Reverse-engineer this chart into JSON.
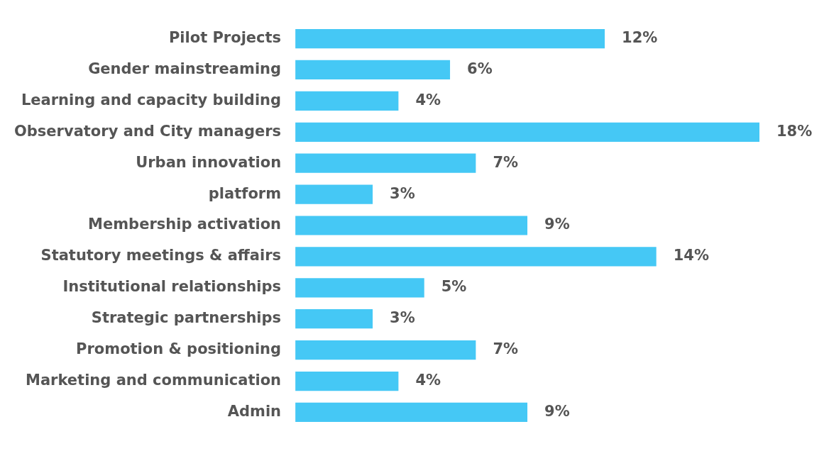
{
  "chart_data": {
    "type": "bar",
    "orientation": "horizontal",
    "categories": [
      "Pilot Projects",
      "Gender mainstreaming",
      "Learning and capacity building",
      "Observatory and City managers",
      "Urban innovation",
      "platform",
      "Membership activation",
      "Statutory meetings & affairs",
      "Institutional relationships",
      "Strategic partnerships",
      "Promotion & positioning",
      "Marketing and communication",
      "Admin"
    ],
    "values": [
      12,
      6,
      4,
      18,
      7,
      3,
      9,
      14,
      5,
      3,
      7,
      4,
      9
    ],
    "value_labels": [
      "12%",
      "6%",
      "4%",
      "18%",
      "7%",
      "3%",
      "9%",
      "14%",
      "5%",
      "3%",
      "7%",
      "4%",
      "9%"
    ],
    "color": "#45c8f5"
  }
}
